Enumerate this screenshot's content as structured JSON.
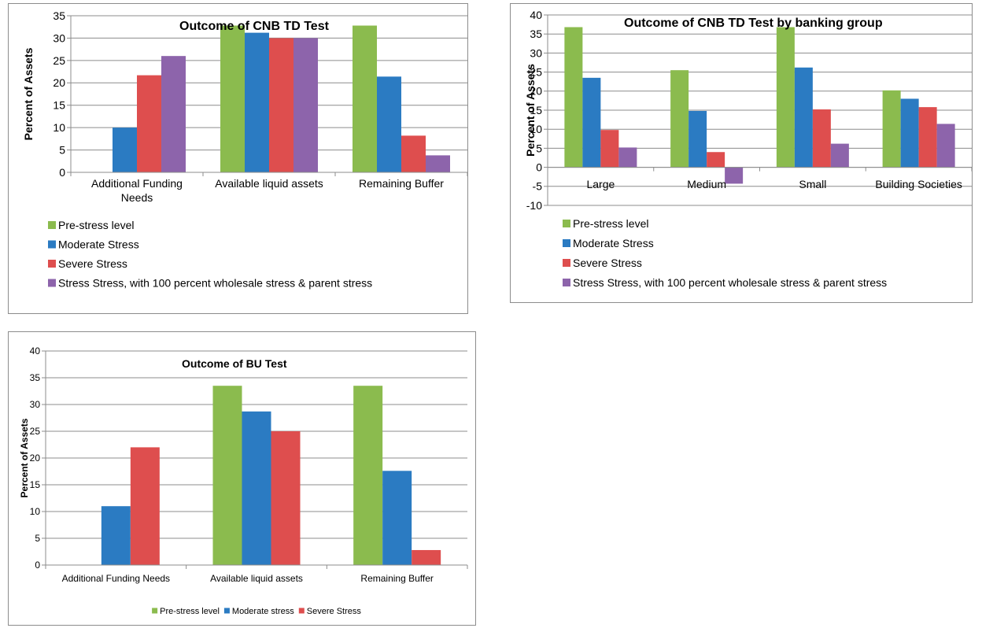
{
  "chart_data": [
    {
      "type": "bar",
      "title": "Outcome of CNB TD Test",
      "xlabel": "",
      "ylabel": "Percent of Assets",
      "ylim": [
        0,
        35
      ],
      "yticks": [
        "0",
        "5",
        "10",
        "15",
        "20",
        "25",
        "30",
        "35"
      ],
      "categories": [
        "Additional Funding Needs",
        "Available liquid assets",
        "Remaining Buffer"
      ],
      "category_label_lines": [
        [
          "Additional Funding",
          "Needs"
        ],
        [
          "Available liquid assets"
        ],
        [
          "Remaining Buffer"
        ]
      ],
      "grid": true,
      "legend": "bottom-left",
      "series": [
        {
          "name": "Pre-stress level",
          "color": "#8BBB4E",
          "values": [
            0,
            32.8,
            32.8
          ]
        },
        {
          "name": "Moderate Stress",
          "color": "#2B7BC2",
          "values": [
            10.0,
            31.2,
            21.4
          ]
        },
        {
          "name": "Severe Stress",
          "color": "#DE4E4E",
          "values": [
            21.7,
            30.0,
            8.2
          ]
        },
        {
          "name": "Stress Stress, with 100 percent wholesale stress & parent stress",
          "color": "#8D64AB",
          "values": [
            26.0,
            30.0,
            3.8
          ]
        }
      ]
    },
    {
      "type": "bar",
      "title": "Outcome of CNB TD Test by banking group",
      "xlabel": "",
      "ylabel": "Percent of Assets",
      "ylim": [
        -10,
        40
      ],
      "yticks": [
        "-10",
        "-5",
        "0",
        "5",
        "10",
        "15",
        "20",
        "25",
        "30",
        "35",
        "40"
      ],
      "categories": [
        "Large",
        "Medium",
        "Small",
        "Building Societies"
      ],
      "grid": true,
      "legend": "bottom-left",
      "series": [
        {
          "name": "Pre-stress level",
          "color": "#8BBB4E",
          "values": [
            36.8,
            25.5,
            36.8,
            20.2
          ]
        },
        {
          "name": "Moderate Stress",
          "color": "#2B7BC2",
          "values": [
            23.5,
            14.8,
            26.2,
            18.0
          ]
        },
        {
          "name": "Severe Stress",
          "color": "#DE4E4E",
          "values": [
            9.8,
            4.0,
            15.2,
            15.8
          ]
        },
        {
          "name": "Stress Stress, with 100 percent wholesale stress & parent stress",
          "color": "#8D64AB",
          "values": [
            5.2,
            -4.3,
            6.2,
            11.4
          ]
        }
      ]
    },
    {
      "type": "bar",
      "title": "Outcome of BU Test",
      "xlabel": "",
      "ylabel": "Percent of Assets",
      "ylim": [
        0,
        40
      ],
      "yticks": [
        "0",
        "5",
        "10",
        "15",
        "20",
        "25",
        "30",
        "35",
        "40"
      ],
      "categories": [
        "Additional Funding Needs",
        "Available liquid assets",
        "Remaining Buffer"
      ],
      "category_label_lines": [
        [
          "Additional Funding Needs"
        ],
        [
          "Available liquid assets"
        ],
        [
          "Remaining Buffer"
        ]
      ],
      "grid": true,
      "legend": "bottom",
      "series": [
        {
          "name": "Pre-stress level",
          "color": "#8BBB4E",
          "values": [
            0,
            33.5,
            33.5
          ]
        },
        {
          "name": "Moderate stress",
          "color": "#2B7BC2",
          "values": [
            11.0,
            28.7,
            17.6
          ]
        },
        {
          "name": "Severe Stress",
          "color": "#DE4E4E",
          "values": [
            22.0,
            25.0,
            2.8
          ]
        }
      ]
    }
  ]
}
